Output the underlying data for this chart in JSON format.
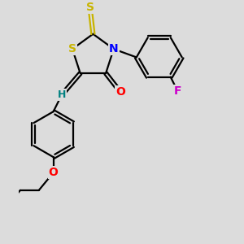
{
  "background_color": "#dcdcdc",
  "atom_colors": {
    "S": "#c8b400",
    "N": "#0000ff",
    "O": "#ff0000",
    "F": "#cc00cc",
    "H": "#008080",
    "C": "#000000"
  },
  "bond_color": "#000000",
  "bond_width": 1.6,
  "font_size_atom": 10,
  "figsize": [
    3.0,
    3.0
  ],
  "dpi": 100
}
